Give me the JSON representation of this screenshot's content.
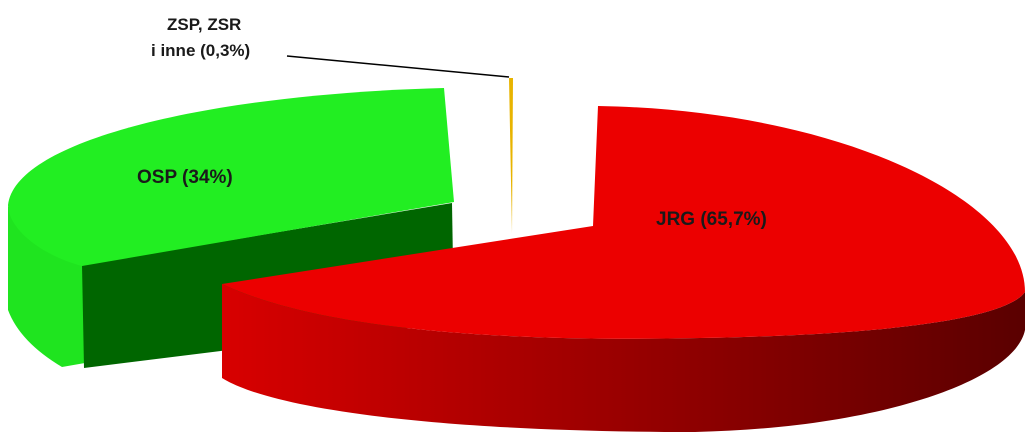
{
  "chart_data": {
    "type": "pie",
    "variant": "3d-exploded",
    "title": "",
    "categories": [
      "JRG",
      "OSP",
      "ZSP, ZSR i inne"
    ],
    "values": [
      65.7,
      34,
      0.3
    ],
    "labels": [
      "JRG (65,7%)",
      "OSP (34%)",
      "ZSP, ZSR i inne (0,3%)"
    ],
    "small_label_lines": [
      "ZSP, ZSR",
      "i inne (0,3%)"
    ],
    "colors": {
      "jrg_top": "#ec0000",
      "jrg_side_light": "#d80000",
      "jrg_side_dark": "#5a0000",
      "osp_top": "#22ee22",
      "osp_side": "#1fe41f",
      "osp_inner": "#006600",
      "zsp": "#e8b400",
      "leader_line": "#000000"
    },
    "legend": "none"
  }
}
